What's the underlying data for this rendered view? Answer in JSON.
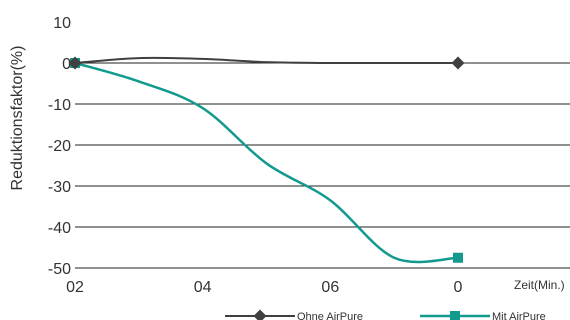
{
  "chart_data": {
    "type": "line",
    "xlabel": "Zeit(Min.)",
    "ylabel": "Reduktionsfaktor(%)",
    "categories": [
      "02",
      "",
      "04",
      "",
      "06",
      "",
      "0"
    ],
    "x_tick_labels": [
      "02",
      "04",
      "06",
      "0"
    ],
    "ylim": [
      -50,
      10
    ],
    "y_ticks": [
      10,
      0,
      -10,
      -20,
      -30,
      -40,
      -50
    ],
    "grid": "horizontal",
    "legend": "bottom-right",
    "series": [
      {
        "name": "Ohne AirPure",
        "color": "#404040",
        "marker": "diamond",
        "values": [
          0,
          1.2,
          1.0,
          0.2,
          0,
          0,
          0
        ],
        "marked_points": [
          0,
          6
        ]
      },
      {
        "name": "Mit AirPure",
        "color": "#139a8e",
        "marker": "square",
        "values": [
          0,
          -4.5,
          -11,
          -24.5,
          -33.5,
          -47.5,
          -47.5
        ],
        "marked_points": [
          0,
          6
        ]
      }
    ]
  }
}
